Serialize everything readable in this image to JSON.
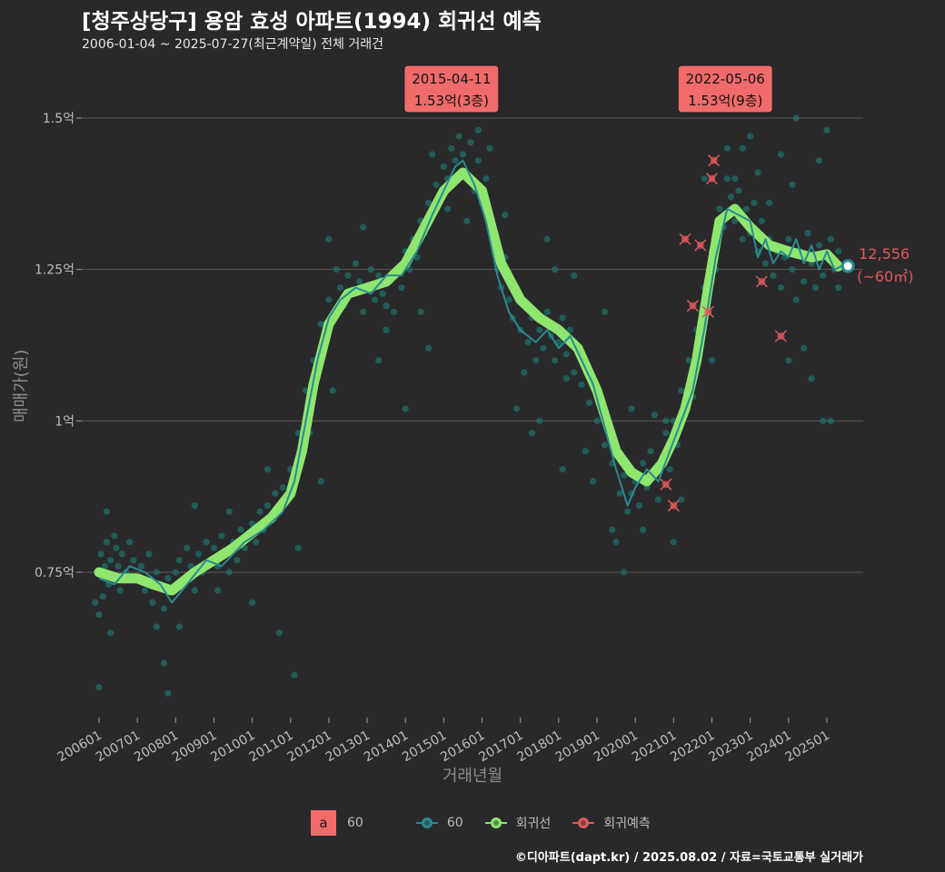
{
  "header": {
    "title": "[청주상당구] 용암 효성 아파트(1994) 회귀선 예측",
    "subtitle": "2006-01-04 ~ 2025-07-27(최근계약일) 전체 거래건"
  },
  "caption": "©디아파트(dapt.kr) / 2025.08.02 / 자료=국토교통부 실거래가",
  "colors": {
    "background": "#29292b",
    "grid": "#5a5a5a",
    "scatter": "#1f6f6b",
    "avg_line": "#2a8a90",
    "regression": "#8ee66f",
    "forecast": "#e05a5a",
    "label_bg": "#f26b6b"
  },
  "legend": {
    "a_key": "a",
    "a_label": "60",
    "line_label": "60",
    "regression_label": "회귀선",
    "forecast_label": "회귀예측"
  },
  "chart_data": {
    "type": "line",
    "title": "[청주상당구] 용암 효성 아파트(1994) 회귀선 예측",
    "xlabel": "거래년월",
    "ylabel": "매매가(원)",
    "ylim": [
      0.51,
      1.575
    ],
    "y_ticks": [
      {
        "value": 0.75,
        "label": "0.75억"
      },
      {
        "value": 1.0,
        "label": "1억"
      },
      {
        "value": 1.25,
        "label": "1.25억"
      },
      {
        "value": 1.5,
        "label": "1.5억"
      }
    ],
    "xlim": [
      2005.55,
      2025.95
    ],
    "x_ticks": [
      {
        "value": 2006.0,
        "label": "200601"
      },
      {
        "value": 2007.0,
        "label": "200701"
      },
      {
        "value": 2008.0,
        "label": "200801"
      },
      {
        "value": 2009.0,
        "label": "200901"
      },
      {
        "value": 2010.0,
        "label": "201001"
      },
      {
        "value": 2011.0,
        "label": "201101"
      },
      {
        "value": 2012.0,
        "label": "201201"
      },
      {
        "value": 2013.0,
        "label": "201301"
      },
      {
        "value": 2014.0,
        "label": "201401"
      },
      {
        "value": 2015.0,
        "label": "201501"
      },
      {
        "value": 2016.0,
        "label": "201601"
      },
      {
        "value": 2017.0,
        "label": "201701"
      },
      {
        "value": 2018.0,
        "label": "201801"
      },
      {
        "value": 2019.0,
        "label": "201901"
      },
      {
        "value": 2020.0,
        "label": "202001"
      },
      {
        "value": 2021.0,
        "label": "202101"
      },
      {
        "value": 2022.0,
        "label": "202201"
      },
      {
        "value": 2023.0,
        "label": "202301"
      },
      {
        "value": 2024.0,
        "label": "202401"
      },
      {
        "value": 2025.0,
        "label": "202501"
      }
    ],
    "series": [
      {
        "name": "회귀선",
        "x": [
          2006.0,
          2006.5,
          2007.0,
          2007.4,
          2007.9,
          2008.5,
          2009.0,
          2009.5,
          2010.0,
          2010.5,
          2011.0,
          2011.3,
          2011.6,
          2012.0,
          2012.5,
          2013.0,
          2013.5,
          2014.0,
          2014.5,
          2015.0,
          2015.5,
          2016.0,
          2016.5,
          2017.0,
          2017.5,
          2018.0,
          2018.5,
          2019.0,
          2019.5,
          2019.9,
          2020.3,
          2020.7,
          2021.0,
          2021.3,
          2021.6,
          2021.9,
          2022.2,
          2022.6,
          2023.0,
          2023.5,
          2024.0,
          2024.3,
          2024.6,
          2025.0,
          2025.3
        ],
        "values": [
          0.75,
          0.74,
          0.74,
          0.73,
          0.72,
          0.75,
          0.77,
          0.79,
          0.815,
          0.84,
          0.88,
          0.95,
          1.06,
          1.16,
          1.21,
          1.22,
          1.23,
          1.26,
          1.32,
          1.38,
          1.41,
          1.38,
          1.26,
          1.2,
          1.17,
          1.15,
          1.12,
          1.05,
          0.95,
          0.915,
          0.9,
          0.93,
          0.97,
          1.02,
          1.1,
          1.22,
          1.33,
          1.35,
          1.32,
          1.29,
          1.28,
          1.275,
          1.27,
          1.275,
          1.255
        ]
      },
      {
        "name": "60",
        "x": [
          2006.0,
          2006.4,
          2006.8,
          2007.2,
          2007.6,
          2007.9,
          2008.3,
          2008.8,
          2009.2,
          2009.8,
          2010.3,
          2010.8,
          2011.1,
          2011.4,
          2011.7,
          2012.0,
          2012.3,
          2012.7,
          2013.1,
          2013.5,
          2013.9,
          2014.3,
          2014.7,
          2015.0,
          2015.3,
          2015.5,
          2015.8,
          2016.1,
          2016.4,
          2016.7,
          2017.0,
          2017.4,
          2017.7,
          2018.0,
          2018.3,
          2018.6,
          2018.9,
          2019.2,
          2019.5,
          2019.8,
          2020.0,
          2020.3,
          2020.6,
          2020.9,
          2021.2,
          2021.5,
          2021.8,
          2022.1,
          2022.4,
          2022.7,
          2023.0,
          2023.2,
          2023.4,
          2023.6,
          2023.8,
          2024.0,
          2024.2,
          2024.4,
          2024.6,
          2024.8,
          2025.0,
          2025.2,
          2025.4
        ],
        "values": [
          0.74,
          0.73,
          0.76,
          0.75,
          0.73,
          0.7,
          0.73,
          0.77,
          0.76,
          0.8,
          0.82,
          0.85,
          0.9,
          1.0,
          1.1,
          1.17,
          1.2,
          1.22,
          1.21,
          1.24,
          1.24,
          1.28,
          1.34,
          1.38,
          1.42,
          1.43,
          1.39,
          1.33,
          1.24,
          1.18,
          1.15,
          1.13,
          1.15,
          1.12,
          1.14,
          1.1,
          1.06,
          0.99,
          0.92,
          0.86,
          0.89,
          0.92,
          0.9,
          0.95,
          1.0,
          1.05,
          1.15,
          1.27,
          1.35,
          1.34,
          1.33,
          1.27,
          1.3,
          1.26,
          1.28,
          1.27,
          1.3,
          1.26,
          1.29,
          1.25,
          1.28,
          1.25,
          1.256
        ]
      }
    ],
    "scatter": [
      [
        2005.9,
        0.7
      ],
      [
        2006.0,
        0.68
      ],
      [
        2006.05,
        0.78
      ],
      [
        2006.1,
        0.71
      ],
      [
        2006.15,
        0.76
      ],
      [
        2006.2,
        0.8
      ],
      [
        2006.25,
        0.73
      ],
      [
        2006.3,
        0.77
      ],
      [
        2006.35,
        0.74
      ],
      [
        2006.4,
        0.81
      ],
      [
        2006.45,
        0.79
      ],
      [
        2006.5,
        0.76
      ],
      [
        2006.55,
        0.72
      ],
      [
        2006.6,
        0.78
      ],
      [
        2006.7,
        0.75
      ],
      [
        2006.8,
        0.8
      ],
      [
        2006.9,
        0.77
      ],
      [
        2007.0,
        0.74
      ],
      [
        2007.1,
        0.76
      ],
      [
        2007.2,
        0.72
      ],
      [
        2007.3,
        0.78
      ],
      [
        2007.4,
        0.7
      ],
      [
        2007.5,
        0.75
      ],
      [
        2007.6,
        0.73
      ],
      [
        2007.7,
        0.69
      ],
      [
        2007.8,
        0.74
      ],
      [
        2007.9,
        0.72
      ],
      [
        2008.0,
        0.75
      ],
      [
        2008.1,
        0.77
      ],
      [
        2008.2,
        0.74
      ],
      [
        2008.3,
        0.79
      ],
      [
        2008.4,
        0.76
      ],
      [
        2008.5,
        0.72
      ],
      [
        2008.6,
        0.78
      ],
      [
        2008.7,
        0.75
      ],
      [
        2008.8,
        0.8
      ],
      [
        2008.9,
        0.77
      ],
      [
        2009.0,
        0.79
      ],
      [
        2009.1,
        0.76
      ],
      [
        2009.2,
        0.81
      ],
      [
        2009.3,
        0.78
      ],
      [
        2009.4,
        0.75
      ],
      [
        2009.5,
        0.8
      ],
      [
        2009.6,
        0.77
      ],
      [
        2009.7,
        0.82
      ],
      [
        2009.8,
        0.79
      ],
      [
        2009.9,
        0.81
      ],
      [
        2010.0,
        0.83
      ],
      [
        2010.1,
        0.8
      ],
      [
        2010.2,
        0.85
      ],
      [
        2010.3,
        0.82
      ],
      [
        2010.4,
        0.86
      ],
      [
        2010.5,
        0.84
      ],
      [
        2010.6,
        0.88
      ],
      [
        2010.7,
        0.85
      ],
      [
        2010.8,
        0.89
      ],
      [
        2010.9,
        0.87
      ],
      [
        2011.0,
        0.92
      ],
      [
        2011.1,
        0.9
      ],
      [
        2011.2,
        0.98
      ],
      [
        2011.3,
        0.96
      ],
      [
        2011.4,
        1.05
      ],
      [
        2011.5,
        1.03
      ],
      [
        2011.6,
        1.1
      ],
      [
        2011.7,
        1.08
      ],
      [
        2011.8,
        1.16
      ],
      [
        2011.9,
        1.14
      ],
      [
        2012.0,
        1.2
      ],
      [
        2012.1,
        1.17
      ],
      [
        2012.2,
        1.25
      ],
      [
        2012.3,
        1.22
      ],
      [
        2012.4,
        1.19
      ],
      [
        2012.5,
        1.24
      ],
      [
        2012.6,
        1.21
      ],
      [
        2012.7,
        1.26
      ],
      [
        2012.8,
        1.23
      ],
      [
        2012.9,
        1.18
      ],
      [
        2013.0,
        1.22
      ],
      [
        2013.1,
        1.25
      ],
      [
        2013.2,
        1.2
      ],
      [
        2013.3,
        1.24
      ],
      [
        2013.4,
        1.21
      ],
      [
        2013.5,
        1.19
      ],
      [
        2013.6,
        1.23
      ],
      [
        2013.7,
        1.18
      ],
      [
        2013.8,
        1.25
      ],
      [
        2013.9,
        1.22
      ],
      [
        2014.0,
        1.28
      ],
      [
        2014.1,
        1.25
      ],
      [
        2014.2,
        1.3
      ],
      [
        2014.3,
        1.27
      ],
      [
        2014.4,
        1.33
      ],
      [
        2014.5,
        1.31
      ],
      [
        2014.6,
        1.36
      ],
      [
        2014.7,
        1.34
      ],
      [
        2014.8,
        1.39
      ],
      [
        2014.9,
        1.37
      ],
      [
        2015.0,
        1.42
      ],
      [
        2015.1,
        1.4
      ],
      [
        2015.2,
        1.45
      ],
      [
        2015.3,
        1.43
      ],
      [
        2015.4,
        1.47
      ],
      [
        2015.5,
        1.44
      ],
      [
        2015.6,
        1.41
      ],
      [
        2015.7,
        1.46
      ],
      [
        2015.8,
        1.38
      ],
      [
        2015.9,
        1.43
      ],
      [
        2016.0,
        1.36
      ],
      [
        2016.1,
        1.4
      ],
      [
        2016.2,
        1.32
      ],
      [
        2016.3,
        1.29
      ],
      [
        2016.4,
        1.25
      ],
      [
        2016.5,
        1.22
      ],
      [
        2016.6,
        1.27
      ],
      [
        2016.7,
        1.2
      ],
      [
        2016.8,
        1.17
      ],
      [
        2016.9,
        1.22
      ],
      [
        2017.0,
        1.15
      ],
      [
        2017.1,
        1.19
      ],
      [
        2017.2,
        1.13
      ],
      [
        2017.3,
        1.17
      ],
      [
        2017.4,
        1.1
      ],
      [
        2017.5,
        1.15
      ],
      [
        2017.6,
        1.12
      ],
      [
        2017.7,
        1.18
      ],
      [
        2017.8,
        1.14
      ],
      [
        2017.9,
        1.1
      ],
      [
        2018.0,
        1.13
      ],
      [
        2018.1,
        1.17
      ],
      [
        2018.2,
        1.11
      ],
      [
        2018.3,
        1.15
      ],
      [
        2018.4,
        1.08
      ],
      [
        2018.5,
        1.12
      ],
      [
        2018.6,
        1.06
      ],
      [
        2018.7,
        1.1
      ],
      [
        2018.8,
        1.03
      ],
      [
        2018.9,
        1.07
      ],
      [
        2019.0,
        1.0
      ],
      [
        2019.1,
        1.04
      ],
      [
        2019.2,
        0.96
      ],
      [
        2019.3,
        0.99
      ],
      [
        2019.4,
        0.93
      ],
      [
        2019.5,
        0.96
      ],
      [
        2019.6,
        0.88
      ],
      [
        2019.7,
        0.91
      ],
      [
        2019.8,
        0.85
      ],
      [
        2019.9,
        0.88
      ],
      [
        2020.0,
        0.9
      ],
      [
        2020.1,
        0.86
      ],
      [
        2020.2,
        0.93
      ],
      [
        2020.3,
        0.89
      ],
      [
        2020.4,
        0.95
      ],
      [
        2020.5,
        0.91
      ],
      [
        2020.6,
        0.87
      ],
      [
        2020.7,
        0.94
      ],
      [
        2020.8,
        0.98
      ],
      [
        2020.9,
        0.92
      ],
      [
        2021.0,
        1.0
      ],
      [
        2021.1,
        0.96
      ],
      [
        2021.2,
        1.05
      ],
      [
        2021.3,
        1.01
      ],
      [
        2021.4,
        1.1
      ],
      [
        2021.5,
        1.06
      ],
      [
        2021.6,
        1.15
      ],
      [
        2021.7,
        1.12
      ],
      [
        2021.8,
        1.22
      ],
      [
        2021.9,
        1.18
      ],
      [
        2022.0,
        1.28
      ],
      [
        2022.1,
        1.25
      ],
      [
        2022.2,
        1.35
      ],
      [
        2022.3,
        1.32
      ],
      [
        2022.4,
        1.4
      ],
      [
        2022.5,
        1.37
      ],
      [
        2022.6,
        1.33
      ],
      [
        2022.7,
        1.38
      ],
      [
        2022.8,
        1.3
      ],
      [
        2022.9,
        1.35
      ],
      [
        2023.0,
        1.31
      ],
      [
        2023.1,
        1.36
      ],
      [
        2023.2,
        1.28
      ],
      [
        2023.3,
        1.33
      ],
      [
        2023.4,
        1.26
      ],
      [
        2023.5,
        1.3
      ],
      [
        2023.6,
        1.24
      ],
      [
        2023.7,
        1.28
      ],
      [
        2023.8,
        1.22
      ],
      [
        2023.9,
        1.27
      ],
      [
        2024.0,
        1.3
      ],
      [
        2024.1,
        1.25
      ],
      [
        2024.2,
        1.2
      ],
      [
        2024.3,
        1.28
      ],
      [
        2024.4,
        1.23
      ],
      [
        2024.5,
        1.31
      ],
      [
        2024.6,
        1.26
      ],
      [
        2024.7,
        1.22
      ],
      [
        2024.8,
        1.29
      ],
      [
        2024.9,
        1.24
      ],
      [
        2025.0,
        1.27
      ],
      [
        2025.1,
        1.3
      ],
      [
        2025.2,
        1.25
      ],
      [
        2025.3,
        1.28
      ],
      [
        2006.0,
        0.56
      ],
      [
        2006.2,
        0.85
      ],
      [
        2006.3,
        0.65
      ],
      [
        2007.5,
        0.66
      ],
      [
        2007.7,
        0.6
      ],
      [
        2007.8,
        0.55
      ],
      [
        2008.1,
        0.66
      ],
      [
        2008.5,
        0.86
      ],
      [
        2009.1,
        0.72
      ],
      [
        2009.4,
        0.85
      ],
      [
        2010.0,
        0.7
      ],
      [
        2010.4,
        0.92
      ],
      [
        2010.7,
        0.65
      ],
      [
        2011.1,
        0.58
      ],
      [
        2011.2,
        0.79
      ],
      [
        2011.5,
        0.98
      ],
      [
        2011.8,
        0.9
      ],
      [
        2012.0,
        1.3
      ],
      [
        2012.1,
        1.05
      ],
      [
        2012.9,
        1.32
      ],
      [
        2013.3,
        1.1
      ],
      [
        2013.5,
        1.15
      ],
      [
        2014.0,
        1.02
      ],
      [
        2014.4,
        1.18
      ],
      [
        2014.6,
        1.12
      ],
      [
        2014.7,
        1.44
      ],
      [
        2015.1,
        1.35
      ],
      [
        2015.2,
        1.53
      ],
      [
        2015.5,
        1.54
      ],
      [
        2015.6,
        1.33
      ],
      [
        2015.9,
        1.48
      ],
      [
        2016.2,
        1.45
      ],
      [
        2016.6,
        1.34
      ],
      [
        2016.9,
        1.02
      ],
      [
        2017.1,
        1.08
      ],
      [
        2017.3,
        0.98
      ],
      [
        2017.5,
        1.0
      ],
      [
        2017.7,
        1.3
      ],
      [
        2017.9,
        1.25
      ],
      [
        2018.1,
        0.92
      ],
      [
        2018.2,
        1.07
      ],
      [
        2018.4,
        1.24
      ],
      [
        2018.7,
        0.95
      ],
      [
        2018.9,
        0.9
      ],
      [
        2019.2,
        1.18
      ],
      [
        2019.4,
        0.82
      ],
      [
        2019.5,
        0.8
      ],
      [
        2019.7,
        0.75
      ],
      [
        2019.9,
        1.02
      ],
      [
        2020.2,
        0.82
      ],
      [
        2020.5,
        1.01
      ],
      [
        2020.8,
        1.0
      ],
      [
        2021.0,
        0.8
      ],
      [
        2021.2,
        0.87
      ],
      [
        2021.5,
        1.04
      ],
      [
        2021.8,
        1.4
      ],
      [
        2022.0,
        1.1
      ],
      [
        2022.4,
        1.45
      ],
      [
        2022.5,
        1.53
      ],
      [
        2022.6,
        1.4
      ],
      [
        2022.8,
        1.45
      ],
      [
        2023.0,
        1.47
      ],
      [
        2023.2,
        1.41
      ],
      [
        2023.5,
        1.36
      ],
      [
        2023.8,
        1.44
      ],
      [
        2024.0,
        1.1
      ],
      [
        2024.1,
        1.39
      ],
      [
        2024.2,
        1.5
      ],
      [
        2024.4,
        1.12
      ],
      [
        2024.6,
        1.07
      ],
      [
        2024.8,
        1.43
      ],
      [
        2024.9,
        1.0
      ],
      [
        2025.0,
        1.48
      ],
      [
        2025.1,
        1.0
      ],
      [
        2025.3,
        1.22
      ]
    ],
    "forecast_points": [
      [
        2020.8,
        0.895
      ],
      [
        2021.0,
        0.86
      ],
      [
        2021.3,
        1.3
      ],
      [
        2021.5,
        1.19
      ],
      [
        2021.9,
        1.18
      ],
      [
        2022.0,
        1.4
      ],
      [
        2022.05,
        1.43
      ],
      [
        2023.3,
        1.23
      ],
      [
        2023.8,
        1.14
      ],
      [
        2021.7,
        1.29
      ]
    ],
    "latest_point": {
      "x": 2025.55,
      "y": 1.2556
    },
    "annotations": [
      {
        "x": 2015.2,
        "y": 1.53,
        "date": "2015-04-11",
        "value": "1.53억(3층)"
      },
      {
        "x": 2022.35,
        "y": 1.53,
        "date": "2022-05-06",
        "value": "1.53억(9층)"
      }
    ],
    "last_label": {
      "value": "12,556",
      "area": "(~60㎡)"
    }
  }
}
